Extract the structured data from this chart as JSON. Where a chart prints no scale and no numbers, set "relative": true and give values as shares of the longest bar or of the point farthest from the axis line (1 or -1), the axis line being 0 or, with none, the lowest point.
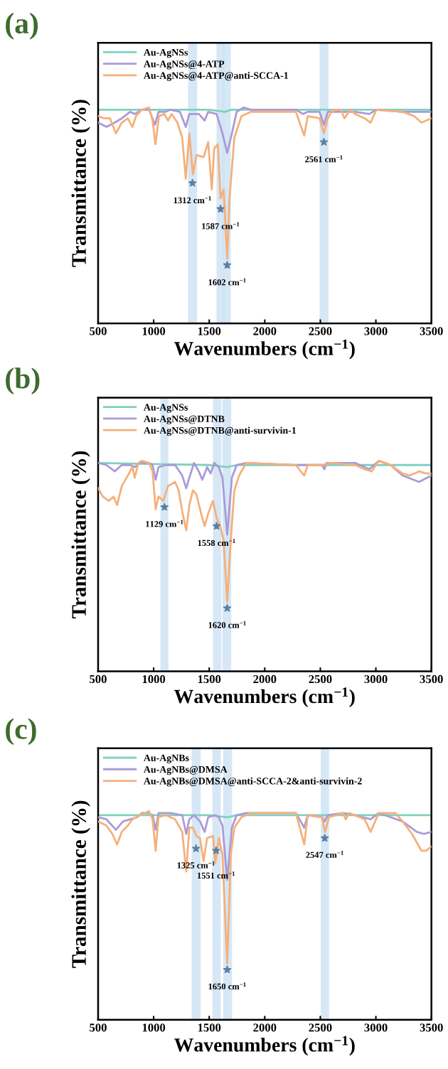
{
  "chart_data": [
    {
      "type": "line",
      "title": "(a)",
      "xlabel": "Wavenumbers (cm$^{−1}$)",
      "ylabel": "Transmittance (%)",
      "relative": true,
      "xlim": [
        500,
        3500
      ],
      "xticks": [
        500,
        1000,
        1500,
        2000,
        2500,
        3000,
        3500
      ],
      "legend": "top left",
      "line_style": "solid",
      "series": [
        {
          "name": "Au-AgNSs",
          "color": "#7fd1c1",
          "x": [
            500,
            1500,
            1640,
            1700,
            3500
          ],
          "values": [
            0.99,
            0.99,
            0.98,
            0.99,
            0.99
          ]
        },
        {
          "name": "Au-AgNSs@4-ATP",
          "color": "#a99bd6",
          "x": [
            500,
            575,
            649,
            713,
            788,
            830,
            894,
            958,
            1012,
            1044,
            1108,
            1150,
            1236,
            1289,
            1321,
            1406,
            1459,
            1491,
            1566,
            1619,
            1662,
            1704,
            1747,
            1811,
            1875,
            2280,
            2344,
            2387,
            2493,
            2532,
            2568,
            2813,
            2941,
            3005,
            3240,
            3500
          ],
          "values": [
            0.93,
            0.91,
            0.93,
            0.95,
            0.98,
            0.97,
            0.99,
            0.99,
            0.92,
            0.98,
            0.98,
            0.99,
            0.98,
            0.91,
            0.97,
            0.97,
            0.94,
            0.98,
            0.97,
            0.88,
            0.79,
            0.88,
            0.98,
            1.0,
            0.99,
            0.99,
            0.97,
            0.98,
            0.98,
            0.92,
            0.98,
            0.98,
            0.97,
            0.99,
            0.98,
            0.98
          ]
        },
        {
          "name": "Au-AgNSs@4-ATP@anti-SCCA-1",
          "color": "#f5b07a",
          "x": [
            500,
            553,
            607,
            660,
            713,
            767,
            809,
            841,
            894,
            958,
            990,
            1016,
            1048,
            1097,
            1129,
            1161,
            1214,
            1257,
            1289,
            1321,
            1353,
            1385,
            1449,
            1491,
            1523,
            1545,
            1577,
            1602,
            1630,
            1662,
            1683,
            1726,
            1790,
            1875,
            2280,
            2355,
            2387,
            2493,
            2532,
            2568,
            2600,
            2643,
            2685,
            2717,
            2771,
            2813,
            2899,
            2952,
            3005,
            3240,
            3346,
            3410,
            3500
          ],
          "values": [
            0.96,
            0.95,
            0.95,
            0.88,
            0.93,
            0.95,
            0.91,
            0.96,
            0.99,
            1.0,
            0.94,
            0.83,
            0.96,
            0.97,
            0.94,
            0.97,
            0.93,
            0.86,
            0.67,
            0.88,
            0.69,
            0.78,
            0.77,
            0.84,
            0.62,
            0.81,
            0.83,
            0.58,
            0.62,
            0.3,
            0.58,
            0.86,
            0.96,
            0.98,
            0.98,
            0.87,
            0.96,
            0.95,
            0.88,
            0.95,
            0.98,
            0.99,
            0.99,
            0.95,
            0.99,
            0.97,
            0.95,
            0.93,
            0.99,
            0.98,
            0.96,
            0.93,
            0.95
          ]
        }
      ],
      "bands": [
        {
          "axis": "x",
          "from": 1310,
          "to": 1391,
          "color": "#cfe3f5"
        },
        {
          "axis": "x",
          "from": 1566,
          "to": 1641,
          "color": "#cfe3f5"
        },
        {
          "axis": "x",
          "from": 1619,
          "to": 1694,
          "color": "#cfe3f5"
        },
        {
          "axis": "x",
          "from": 2493,
          "to": 2574,
          "color": "#cfe3f5"
        }
      ],
      "annotations": [
        {
          "text": "1312 cm$^{−1}$",
          "x": 1349,
          "y": 0.65
        },
        {
          "text": "1587 cm$^{−1}$",
          "x": 1602,
          "y": 0.53
        },
        {
          "text": "1602 cm$^{−1}$",
          "x": 1662,
          "y": 0.27
        },
        {
          "text": "2561 cm$^{−1}$",
          "x": 2532,
          "y": 0.84
        }
      ]
    },
    {
      "type": "line",
      "title": "(b)",
      "xlabel": "Wavenumbers (cm$^{−1}$)",
      "ylabel": "Transmittance (%)",
      "relative": true,
      "xlim": [
        500,
        3500
      ],
      "xticks": [
        500,
        1000,
        1500,
        2000,
        2500,
        3000,
        3500
      ],
      "legend": "top left",
      "line_style": "solid",
      "series": [
        {
          "name": "Au-AgNSs",
          "color": "#7fd1c1",
          "x": [
            500,
            1500,
            1662,
            1750,
            3500
          ],
          "values": [
            0.99,
            0.98,
            0.97,
            0.98,
            0.98
          ]
        },
        {
          "name": "Au-AgNSs@DTNB",
          "color": "#a99bd6",
          "x": [
            500,
            575,
            649,
            713,
            788,
            830,
            873,
            958,
            990,
            1018,
            1044,
            1108,
            1193,
            1257,
            1293,
            1321,
            1363,
            1406,
            1438,
            1481,
            1513,
            1545,
            1587,
            1619,
            1662,
            1704,
            1747,
            1833,
            2302,
            2515,
            2536,
            2557,
            2643,
            2813,
            2941,
            3026,
            3133,
            3240,
            3389,
            3500
          ],
          "values": [
            0.99,
            0.98,
            0.95,
            0.98,
            0.98,
            0.97,
            0.99,
            0.99,
            0.98,
            0.91,
            0.97,
            0.98,
            0.98,
            0.93,
            0.87,
            0.92,
            0.99,
            0.95,
            0.91,
            0.97,
            0.94,
            0.99,
            0.97,
            0.92,
            0.65,
            0.92,
            0.98,
            0.99,
            0.98,
            0.98,
            0.96,
            0.99,
            0.99,
            0.99,
            0.96,
            1.0,
            0.98,
            0.93,
            0.9,
            0.93
          ]
        },
        {
          "name": "Au-AgNSs@DTNB@anti-survivin-1",
          "color": "#f5b07a",
          "x": [
            500,
            543,
            596,
            639,
            671,
            713,
            767,
            809,
            830,
            862,
            894,
            958,
            990,
            1018,
            1044,
            1087,
            1129,
            1193,
            1225,
            1257,
            1293,
            1321,
            1353,
            1385,
            1427,
            1459,
            1491,
            1534,
            1566,
            1598,
            1630,
            1662,
            1694,
            1726,
            1769,
            1833,
            2280,
            2355,
            2387,
            2515,
            2600,
            2813,
            2899,
            2962,
            3026,
            3133,
            3240,
            3304,
            3389,
            3453,
            3500
          ],
          "values": [
            0.87,
            0.83,
            0.81,
            0.83,
            0.79,
            0.88,
            0.93,
            0.97,
            0.92,
            0.99,
            1.0,
            0.99,
            0.95,
            0.77,
            0.83,
            0.81,
            0.88,
            0.9,
            0.86,
            0.76,
            0.67,
            0.79,
            0.86,
            0.84,
            0.75,
            0.69,
            0.75,
            0.81,
            0.73,
            0.69,
            0.62,
            0.33,
            0.62,
            0.86,
            0.93,
            0.99,
            0.98,
            0.93,
            0.98,
            0.98,
            0.99,
            0.98,
            0.96,
            0.95,
            1.0,
            0.98,
            0.94,
            0.93,
            0.95,
            0.94,
            0.94
          ]
        }
      ],
      "bands": [
        {
          "axis": "x",
          "from": 1061,
          "to": 1133,
          "color": "#cfe3f5"
        },
        {
          "axis": "x",
          "from": 1534,
          "to": 1609,
          "color": "#cfe3f5"
        },
        {
          "axis": "x",
          "from": 1619,
          "to": 1698,
          "color": "#cfe3f5"
        }
      ],
      "annotations": [
        {
          "text": "1129 cm$^{−1}$",
          "x": 1097,
          "y": 0.78
        },
        {
          "text": "1558 cm$^{−1}$",
          "x": 1566,
          "y": 0.69
        },
        {
          "text": "1620 cm$^{−1}$",
          "x": 1662,
          "y": 0.3
        }
      ]
    },
    {
      "type": "line",
      "title": "(c)",
      "xlabel": "Wavenumbers (cm$^{−1}$)",
      "ylabel": "Transmittance (%)",
      "relative": true,
      "xlim": [
        500,
        3500
      ],
      "xticks": [
        500,
        1000,
        1500,
        2000,
        2500,
        3000,
        3500
      ],
      "legend": "top left",
      "line_style": "solid",
      "series": [
        {
          "name": "Au-AgNBs",
          "color": "#7fd1c1",
          "x": [
            500,
            1500,
            1662,
            1750,
            3500
          ],
          "values": [
            0.98,
            0.98,
            0.97,
            0.98,
            0.98
          ]
        },
        {
          "name": "Au-AgNBs@DMSA",
          "color": "#a99bd6",
          "x": [
            500,
            575,
            660,
            724,
            788,
            852,
            894,
            958,
            990,
            1018,
            1044,
            1150,
            1257,
            1293,
            1321,
            1363,
            1417,
            1459,
            1491,
            1555,
            1587,
            1619,
            1662,
            1704,
            1747,
            1833,
            2280,
            2355,
            2387,
            2515,
            2540,
            2568,
            2706,
            2813,
            2952,
            3026,
            3133,
            3240,
            3368,
            3432,
            3500
          ],
          "values": [
            0.97,
            0.96,
            0.91,
            0.95,
            0.96,
            0.97,
            0.99,
            0.99,
            0.98,
            0.91,
            0.99,
            0.99,
            0.98,
            0.89,
            0.96,
            0.98,
            0.95,
            0.9,
            0.97,
            0.98,
            0.97,
            0.93,
            0.67,
            0.92,
            0.98,
            0.99,
            0.99,
            0.92,
            0.98,
            0.97,
            0.95,
            0.98,
            0.99,
            0.98,
            0.96,
            0.99,
            0.97,
            0.95,
            0.9,
            0.89,
            0.9
          ]
        },
        {
          "name": "Au-AgNBs@DMSA@anti-SCCA-2&anti-survivin-2",
          "color": "#f5b07a",
          "x": [
            500,
            575,
            628,
            671,
            713,
            767,
            809,
            873,
            926,
            958,
            990,
            1018,
            1044,
            1108,
            1193,
            1236,
            1257,
            1293,
            1321,
            1353,
            1385,
            1417,
            1449,
            1481,
            1534,
            1555,
            1587,
            1619,
            1662,
            1694,
            1726,
            1790,
            1875,
            2280,
            2355,
            2387,
            2515,
            2542,
            2579,
            2706,
            2728,
            2760,
            2899,
            2952,
            3026,
            3176,
            3240,
            3325,
            3410,
            3453,
            3500
          ],
          "values": [
            0.95,
            0.93,
            0.89,
            0.84,
            0.9,
            0.93,
            0.96,
            0.98,
            0.99,
            1.0,
            0.96,
            0.81,
            0.97,
            0.98,
            0.96,
            0.92,
            0.9,
            0.71,
            0.92,
            0.92,
            0.88,
            0.87,
            0.76,
            0.87,
            0.88,
            0.75,
            0.87,
            0.79,
            0.27,
            0.79,
            0.92,
            0.97,
            0.99,
            0.99,
            0.84,
            0.98,
            0.97,
            0.9,
            0.97,
            0.99,
            0.96,
            0.99,
            0.96,
            0.9,
            0.99,
            0.99,
            0.95,
            0.89,
            0.81,
            0.81,
            0.83
          ]
        }
      ],
      "bands": [
        {
          "axis": "x",
          "from": 1342,
          "to": 1423,
          "color": "#cfe3f5"
        },
        {
          "axis": "x",
          "from": 1528,
          "to": 1604,
          "color": "#cfe3f5"
        },
        {
          "axis": "x",
          "from": 1626,
          "to": 1705,
          "color": "#cfe3f5"
        },
        {
          "axis": "x",
          "from": 2504,
          "to": 2579,
          "color": "#cfe3f5"
        }
      ],
      "annotations": [
        {
          "text": "1325 cm$^{−1}$",
          "x": 1381,
          "y": 0.82
        },
        {
          "text": "1551 cm$^{−1}$",
          "x": 1562,
          "y": 0.81
        },
        {
          "text": "1650 cm$^{−1}$",
          "x": 1662,
          "y": 0.24
        },
        {
          "text": "2547 cm$^{−1}$",
          "x": 2540,
          "y": 0.87
        }
      ]
    }
  ]
}
